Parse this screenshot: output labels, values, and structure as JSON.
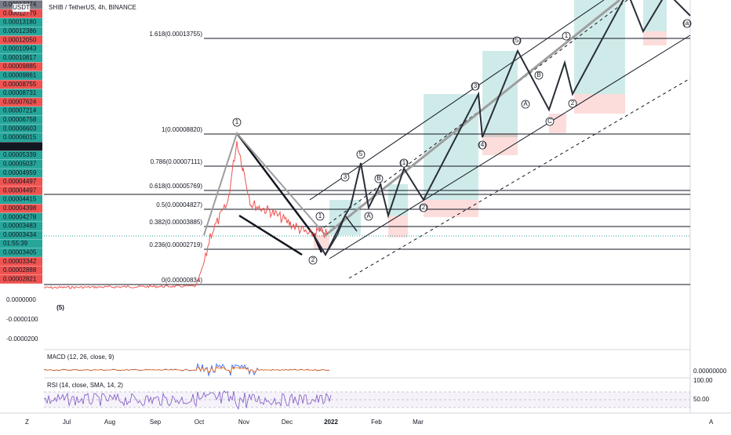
{
  "header": {
    "title": "SHIB / TetherUS, 4h, BINANCE",
    "currency": "USDT"
  },
  "price_labels": [
    {
      "text": "0.00013274",
      "color": "#787b86"
    },
    {
      "text": "0.00012779",
      "color": "#ef5350"
    },
    {
      "text": "0.00013180",
      "color": "#26a69a"
    },
    {
      "text": "0.00012386",
      "color": "#26a69a"
    },
    {
      "text": "0.00012050",
      "color": "#ef5350"
    },
    {
      "text": "0.00010943",
      "color": "#26a69a"
    },
    {
      "text": "0.00010817",
      "color": "#26a69a"
    },
    {
      "text": "0.00009885",
      "color": "#ef5350"
    },
    {
      "text": "0.00009861",
      "color": "#26a69a"
    },
    {
      "text": "0.00008755",
      "color": "#ef5350"
    },
    {
      "text": "0.00008731",
      "color": "#26a69a"
    },
    {
      "text": "0.00007624",
      "color": "#ef5350"
    },
    {
      "text": "0.00007214",
      "color": "#26a69a"
    },
    {
      "text": "0.00006758",
      "color": "#26a69a"
    },
    {
      "text": "0.00006603",
      "color": "#26a69a"
    },
    {
      "text": "0.00006015",
      "color": "#26a69a"
    },
    {
      "text": "0.00005605",
      "color": "#131722"
    },
    {
      "text": "0.00005339",
      "color": "#26a69a"
    },
    {
      "text": "0.00005037",
      "color": "#26a69a"
    },
    {
      "text": "0.00004959",
      "color": "#26a69a"
    },
    {
      "text": "0.00004497",
      "color": "#ef5350"
    },
    {
      "text": "0.00004497",
      "color": "#ef5350"
    },
    {
      "text": "0.00004415",
      "color": "#26a69a"
    },
    {
      "text": "0.00004398",
      "color": "#ef5350"
    },
    {
      "text": "0.00004278",
      "color": "#26a69a"
    },
    {
      "text": "0.00003483",
      "color": "#26a69a"
    },
    {
      "text": "0.00003434",
      "color": "#26a69a"
    },
    {
      "text": "01:55:39",
      "color": "#26a69a"
    },
    {
      "text": "0.00003405",
      "color": "#26a69a"
    },
    {
      "text": "0.00003342",
      "color": "#ef5350"
    },
    {
      "text": "0.00002888",
      "color": "#ef5350"
    },
    {
      "text": "0.00002821",
      "color": "#ef5350"
    }
  ],
  "scale_labels": [
    "0.0000000",
    "-0.0000100",
    "-0.0000200"
  ],
  "fib_levels": [
    "1.618(0.00013755)",
    "1(0.00008820)",
    "0.786(0.00007111)",
    "0.618(0.00005769)",
    "0.5(0.00004827)",
    "0.382(0.00003885)",
    "0.236(0.00002719)",
    "0(0.00000834)"
  ],
  "wave_labels": [
    "(5)",
    "1",
    "2",
    "1",
    "3",
    "5",
    "A",
    "B",
    "(1)",
    "(2)",
    "(3)",
    "(4)",
    "(5)",
    "A",
    "B",
    "C",
    "1",
    "2",
    "(a)"
  ],
  "time_axis": [
    "Jul",
    "Aug",
    "Sep",
    "Oct",
    "Nov",
    "Dec",
    "2022",
    "Feb",
    "Mar"
  ],
  "macd": {
    "label": "MACD (12, 26, close, 9)",
    "value": "0.00000000"
  },
  "rsi": {
    "label": "RSI (14, close, SMA, 14, 2)",
    "upper": "100.00",
    "mid": "50.00"
  },
  "footer": {
    "left": "Z",
    "right": "A"
  }
}
